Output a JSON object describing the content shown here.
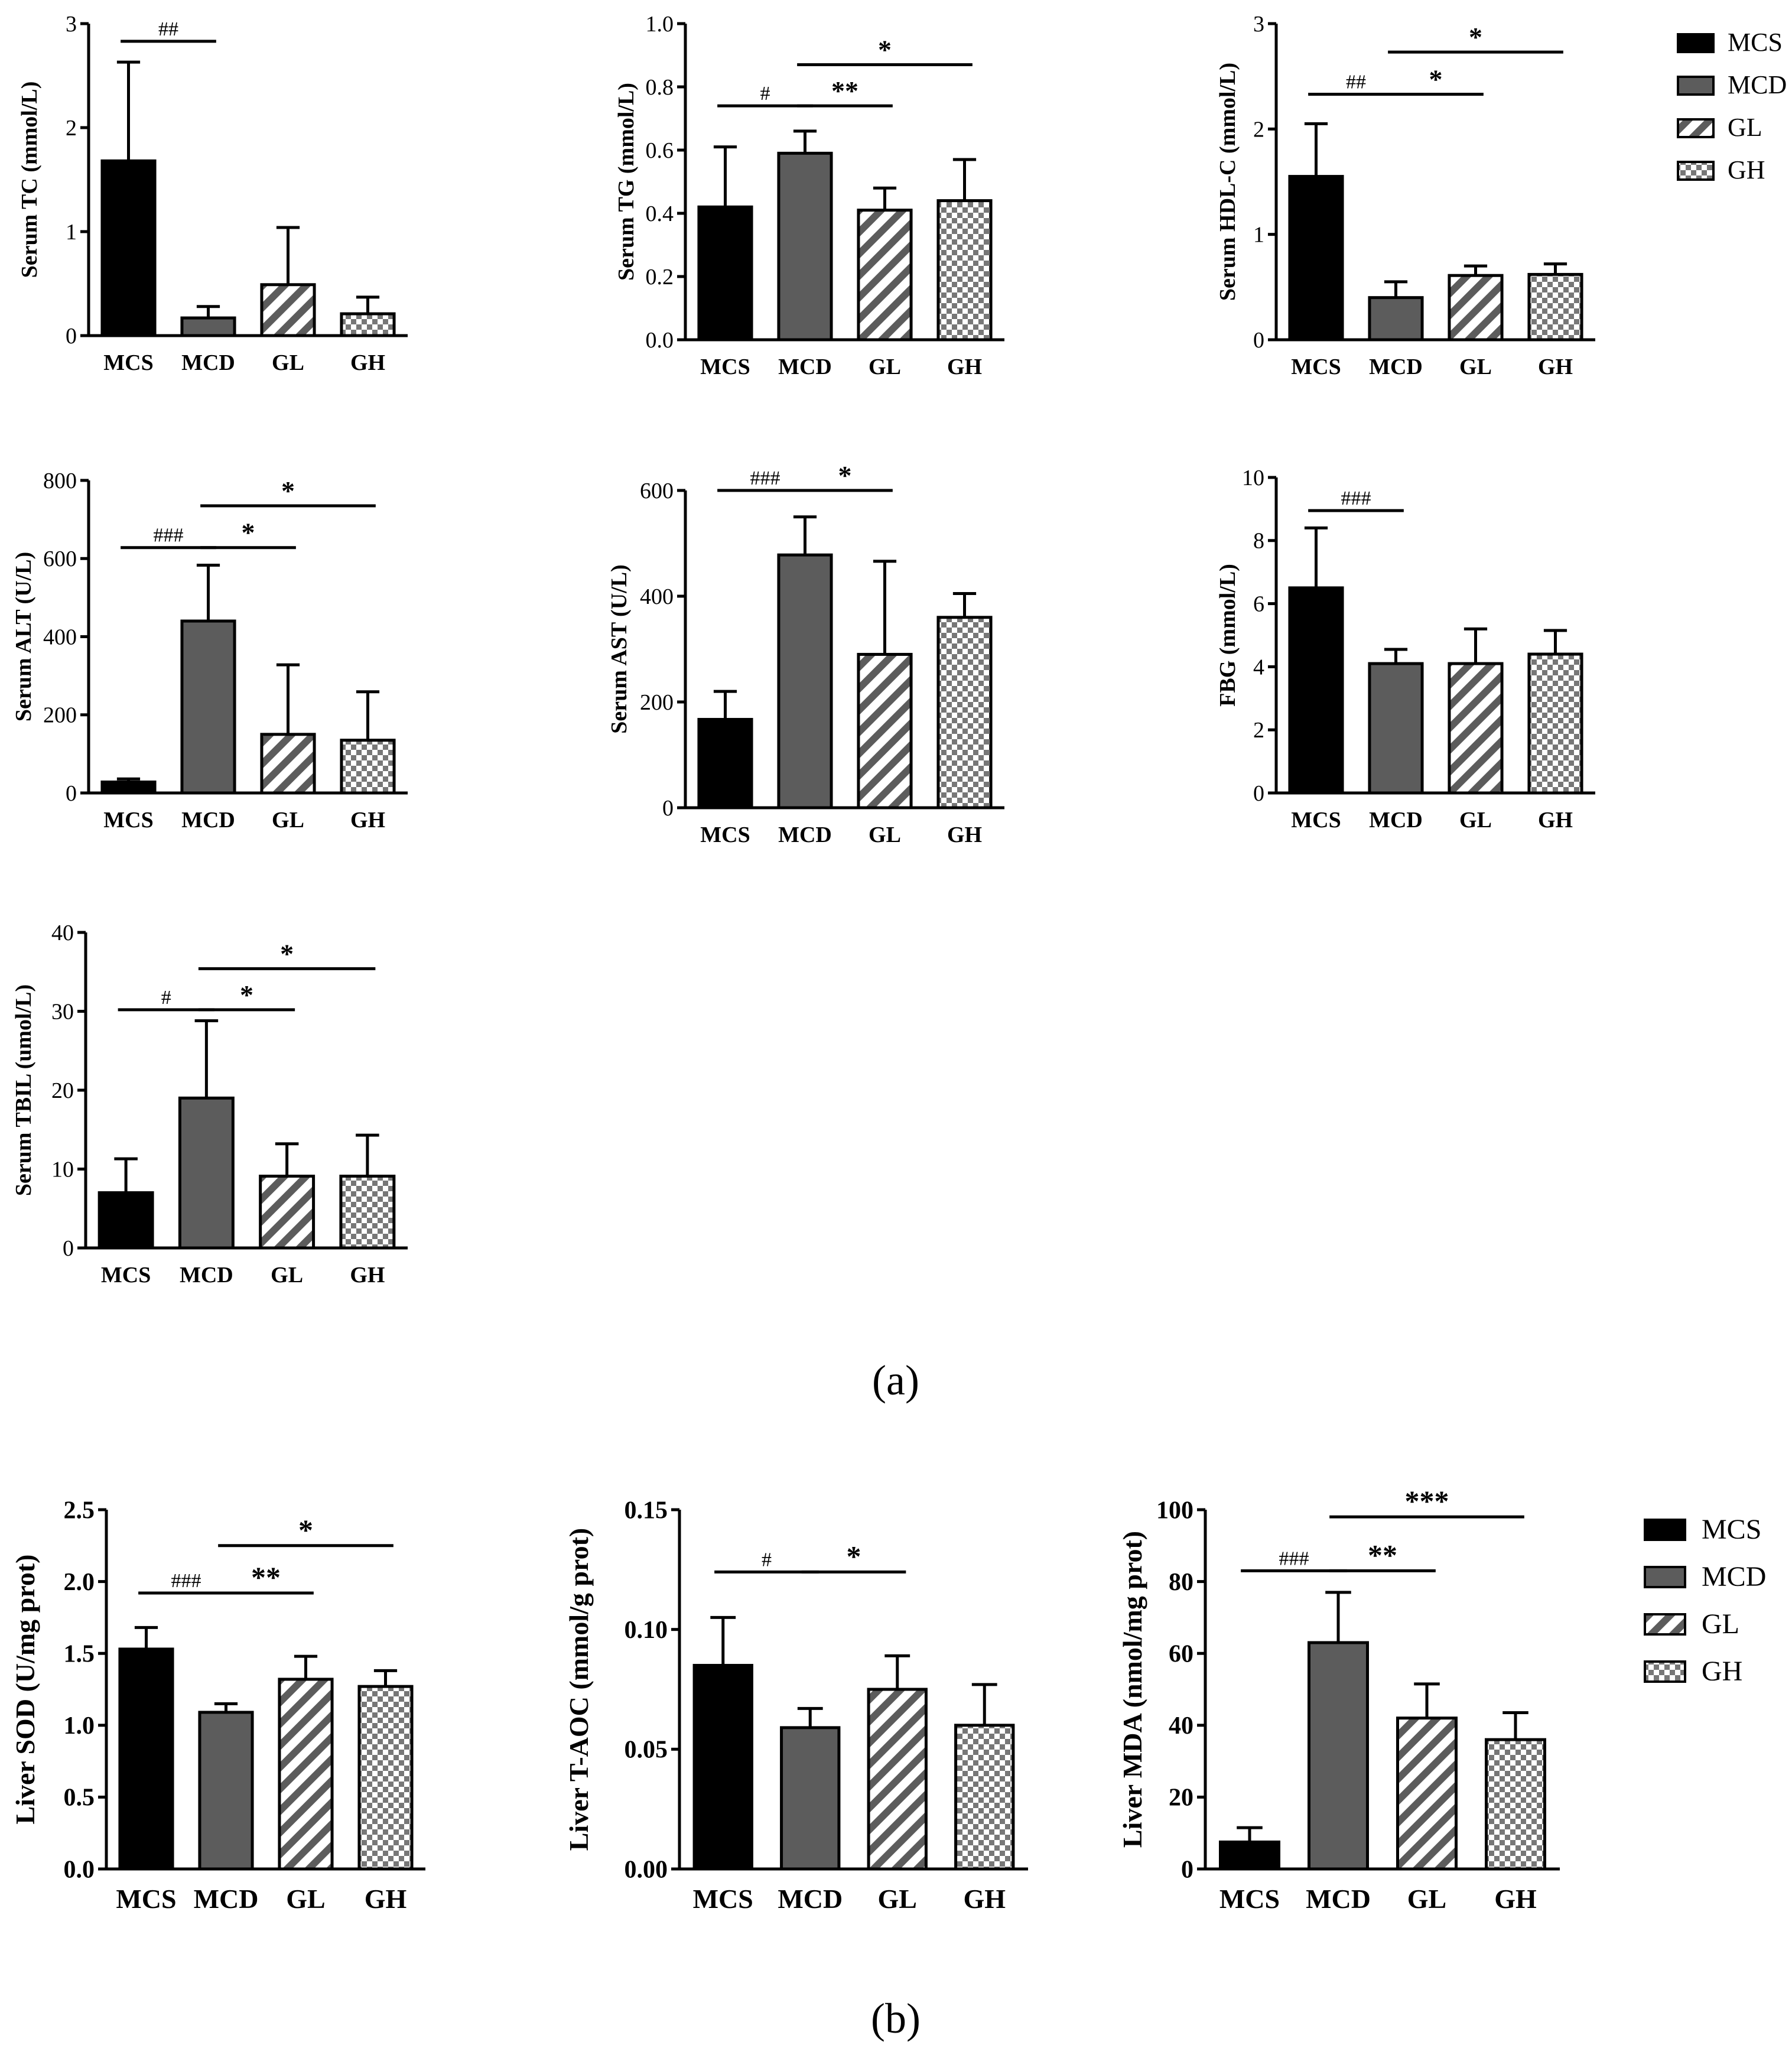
{
  "legend_entries": [
    "MCS",
    "MCD",
    "GL",
    "GH"
  ],
  "panel_labels": {
    "a": "(a)",
    "b": "(b)"
  },
  "significance_symbols": [
    "#",
    "##",
    "###",
    "*",
    "**",
    "***"
  ],
  "colors": {
    "MCS": "#000000",
    "MCD": "#5c5c5c",
    "GL_pattern": "diagonal-hatch",
    "GH_pattern": "checkerboard",
    "axis": "#000000"
  },
  "chart_data": [
    {
      "id": "tc",
      "type": "bar",
      "title": "",
      "ylabel": "Serum TC (mmol/L)",
      "xlabel": "",
      "categories": [
        "MCS",
        "MCD",
        "GL",
        "GH"
      ],
      "values": [
        1.68,
        0.17,
        0.49,
        0.21
      ],
      "errors": [
        0.95,
        0.11,
        0.55,
        0.16
      ],
      "ylim": [
        0,
        3
      ],
      "yticks": [
        "0",
        "1",
        "2",
        "3"
      ],
      "annotations": [
        {
          "from": 0,
          "to": 1,
          "label": "##",
          "y": 2.83
        }
      ]
    },
    {
      "id": "tg",
      "type": "bar",
      "title": "",
      "ylabel": "Serum TG (mmol/L)",
      "xlabel": "",
      "categories": [
        "MCS",
        "MCD",
        "GL",
        "GH"
      ],
      "values": [
        0.42,
        0.59,
        0.41,
        0.44
      ],
      "errors": [
        0.19,
        0.07,
        0.07,
        0.13
      ],
      "ylim": [
        0,
        1.0
      ],
      "yticks": [
        "0.0",
        "0.2",
        "0.4",
        "0.6",
        "0.8",
        "1.0"
      ],
      "annotations": [
        {
          "from": 0,
          "to": 1,
          "label": "#",
          "y": 0.74
        },
        {
          "from": 1,
          "to": 2,
          "label": "**",
          "y": 0.74
        },
        {
          "from": 1,
          "to": 3,
          "label": "*",
          "y": 0.87
        }
      ]
    },
    {
      "id": "hdl",
      "type": "bar",
      "title": "",
      "ylabel": "Serum HDL-C (mmol/L)",
      "xlabel": "",
      "categories": [
        "MCS",
        "MCD",
        "GL",
        "GH"
      ],
      "values": [
        1.55,
        0.4,
        0.61,
        0.62
      ],
      "errors": [
        0.5,
        0.15,
        0.09,
        0.1
      ],
      "ylim": [
        0,
        3
      ],
      "yticks": [
        "0",
        "1",
        "2",
        "3"
      ],
      "annotations": [
        {
          "from": 0,
          "to": 1,
          "label": "##",
          "y": 2.33
        },
        {
          "from": 1,
          "to": 2,
          "label": "*",
          "y": 2.33
        },
        {
          "from": 1,
          "to": 3,
          "label": "*",
          "y": 2.73
        }
      ]
    },
    {
      "id": "alt",
      "type": "bar",
      "title": "",
      "ylabel": "Serum ALT (U/L)",
      "xlabel": "",
      "categories": [
        "MCS",
        "MCD",
        "GL",
        "GH"
      ],
      "values": [
        28,
        440,
        150,
        135
      ],
      "errors": [
        8,
        143,
        178,
        124
      ],
      "ylim": [
        0,
        800
      ],
      "yticks": [
        "0",
        "200",
        "400",
        "600",
        "800"
      ],
      "annotations": [
        {
          "from": 0,
          "to": 1,
          "label": "###",
          "y": 628
        },
        {
          "from": 1,
          "to": 2,
          "label": "*",
          "y": 628
        },
        {
          "from": 1,
          "to": 3,
          "label": "*",
          "y": 735
        }
      ]
    },
    {
      "id": "ast",
      "type": "bar",
      "title": "",
      "ylabel": "Serum AST (U/L)",
      "xlabel": "",
      "categories": [
        "MCS",
        "MCD",
        "GL",
        "GH"
      ],
      "values": [
        167,
        478,
        290,
        360
      ],
      "errors": [
        53,
        72,
        176,
        45
      ],
      "ylim": [
        0,
        600
      ],
      "yticks": [
        "0",
        "200",
        "400",
        "600"
      ],
      "annotations": [
        {
          "from": 0,
          "to": 1,
          "label": "###",
          "y": 600
        },
        {
          "from": 1,
          "to": 2,
          "label": "*",
          "y": 600
        }
      ]
    },
    {
      "id": "fbg",
      "type": "bar",
      "title": "",
      "ylabel": "FBG (mmol/L)",
      "xlabel": "",
      "categories": [
        "MCS",
        "MCD",
        "GL",
        "GH"
      ],
      "values": [
        6.5,
        4.1,
        4.1,
        4.4
      ],
      "errors": [
        1.9,
        0.45,
        1.1,
        0.75
      ],
      "ylim": [
        0,
        10
      ],
      "yticks": [
        "0",
        "2",
        "4",
        "6",
        "8",
        "10"
      ],
      "annotations": [
        {
          "from": 0,
          "to": 1,
          "label": "###",
          "y": 8.95
        }
      ]
    },
    {
      "id": "tbil",
      "type": "bar",
      "title": "",
      "ylabel": "Serum TBIL (umol/L)",
      "xlabel": "",
      "categories": [
        "MCS",
        "MCD",
        "GL",
        "GH"
      ],
      "values": [
        7.0,
        19.0,
        9.1,
        9.1
      ],
      "errors": [
        4.3,
        9.8,
        4.1,
        5.2
      ],
      "ylim": [
        0,
        40
      ],
      "yticks": [
        "0",
        "10",
        "20",
        "30",
        "40"
      ],
      "annotations": [
        {
          "from": 0,
          "to": 1,
          "label": "#",
          "y": 30.2
        },
        {
          "from": 1,
          "to": 2,
          "label": "*",
          "y": 30.2
        },
        {
          "from": 1,
          "to": 3,
          "label": "*",
          "y": 35.4
        }
      ]
    },
    {
      "id": "sod",
      "type": "bar",
      "title": "",
      "ylabel": "Liver SOD (U/mg prot)",
      "xlabel": "",
      "categories": [
        "MCS",
        "MCD",
        "GL",
        "GH"
      ],
      "values": [
        1.53,
        1.09,
        1.32,
        1.27
      ],
      "errors": [
        0.15,
        0.06,
        0.16,
        0.11
      ],
      "ylim": [
        0,
        2.5
      ],
      "yticks": [
        "0.0",
        "0.5",
        "1.0",
        "1.5",
        "2.0",
        "2.5"
      ],
      "annotations": [
        {
          "from": 0,
          "to": 1,
          "label": "###",
          "y": 1.92
        },
        {
          "from": 1,
          "to": 2,
          "label": "**",
          "y": 1.92
        },
        {
          "from": 1,
          "to": 3,
          "label": "*",
          "y": 2.25
        }
      ]
    },
    {
      "id": "taoc",
      "type": "bar",
      "title": "",
      "ylabel": "Liver T-AOC (mmol/g prot)",
      "xlabel": "",
      "categories": [
        "MCS",
        "MCD",
        "GL",
        "GH"
      ],
      "values": [
        0.085,
        0.059,
        0.075,
        0.06
      ],
      "errors": [
        0.02,
        0.008,
        0.014,
        0.017
      ],
      "ylim": [
        0,
        0.15
      ],
      "yticks": [
        "0.00",
        "0.05",
        "0.10",
        "0.15"
      ],
      "annotations": [
        {
          "from": 0,
          "to": 1,
          "label": "#",
          "y": 0.124
        },
        {
          "from": 1,
          "to": 2,
          "label": "*",
          "y": 0.124
        }
      ]
    },
    {
      "id": "mda",
      "type": "bar",
      "title": "",
      "ylabel": "Liver MDA (nmol/mg prot)",
      "xlabel": "",
      "categories": [
        "MCS",
        "MCD",
        "GL",
        "GH"
      ],
      "values": [
        7.5,
        63,
        42,
        36
      ],
      "errors": [
        4.0,
        14,
        9.5,
        7.5
      ],
      "ylim": [
        0,
        100
      ],
      "yticks": [
        "0",
        "20",
        "40",
        "60",
        "80",
        "100"
      ],
      "annotations": [
        {
          "from": 0,
          "to": 1,
          "label": "###",
          "y": 83
        },
        {
          "from": 1,
          "to": 2,
          "label": "**",
          "y": 83
        },
        {
          "from": 1,
          "to": 3,
          "label": "***",
          "y": 98
        }
      ]
    }
  ]
}
